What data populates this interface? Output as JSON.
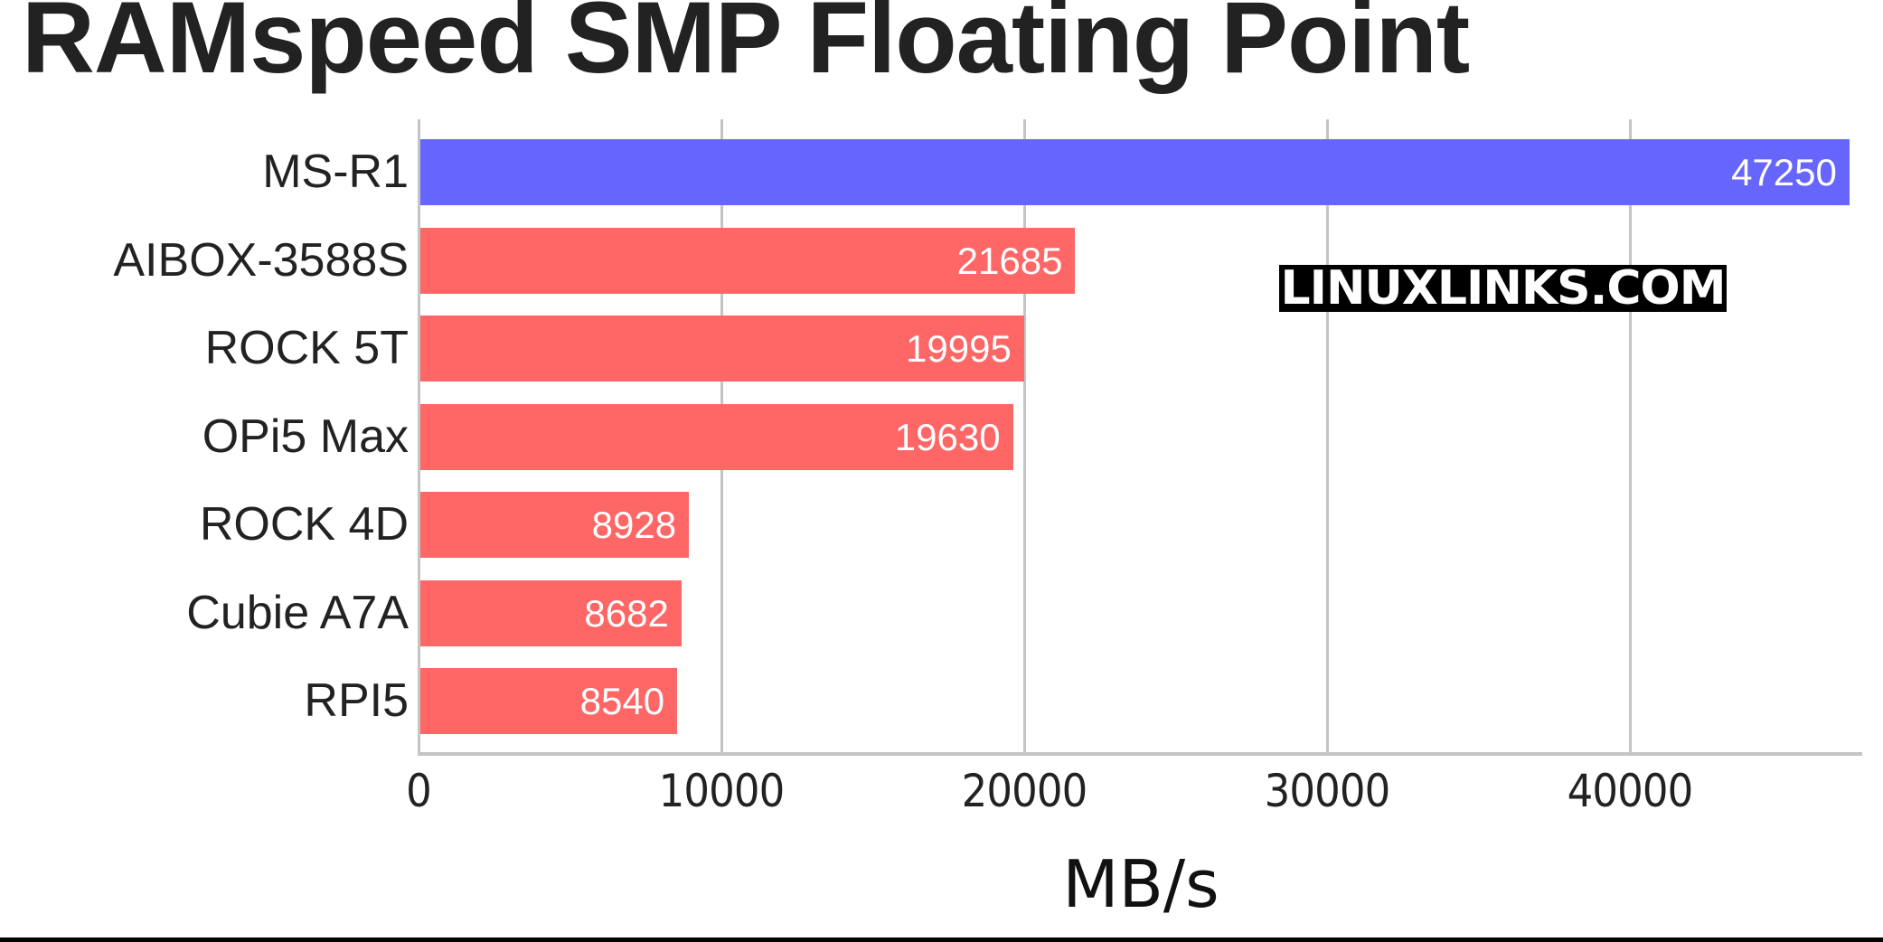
{
  "chart_data": {
    "type": "bar",
    "orientation": "horizontal",
    "title": "RAMspeed SMP Floating Point",
    "xlabel": "MB/s",
    "ylabel": "",
    "categories": [
      "MS-R1",
      "AIBOX-3588S",
      "ROCK 5T",
      "OPi5 Max",
      "ROCK 4D",
      "Cubie A7A",
      "RPI5"
    ],
    "values": [
      47250,
      21685,
      19995,
      19630,
      8928,
      8682,
      8540
    ],
    "bar_colors": [
      "#6666ff",
      "#ff6666",
      "#ff6666",
      "#ff6666",
      "#ff6666",
      "#ff6666",
      "#ff6666"
    ],
    "xticks": [
      "0",
      "10000",
      "20000",
      "30000",
      "40000"
    ],
    "xlim": [
      0,
      47800
    ],
    "grid": true,
    "legend": null,
    "data_labels": true,
    "annotations": [
      "LINUXLINKS.COM"
    ]
  },
  "header": {
    "title": "RAMspeed SMP Floating Point"
  },
  "axis": {
    "x_label": "MB/s",
    "ticks": [
      {
        "label": "0",
        "value": 0
      },
      {
        "label": "10000",
        "value": 10000
      },
      {
        "label": "20000",
        "value": 20000
      },
      {
        "label": "30000",
        "value": 30000
      },
      {
        "label": "40000",
        "value": 40000
      }
    ]
  },
  "bars": [
    {
      "label": "MS-R1",
      "value": 47250,
      "value_text": "47250",
      "color": "#6666ff"
    },
    {
      "label": "AIBOX-3588S",
      "value": 21685,
      "value_text": "21685",
      "color": "#ff6666"
    },
    {
      "label": "ROCK 5T",
      "value": 19995,
      "value_text": "19995",
      "color": "#ff6666"
    },
    {
      "label": "OPi5 Max",
      "value": 19630,
      "value_text": "19630",
      "color": "#ff6666"
    },
    {
      "label": "ROCK 4D",
      "value": 8928,
      "value_text": "8928",
      "color": "#ff6666"
    },
    {
      "label": "Cubie A7A",
      "value": 8682,
      "value_text": "8682",
      "color": "#ff6666"
    },
    {
      "label": "RPI5",
      "value": 8540,
      "value_text": "8540",
      "color": "#ff6666"
    }
  ],
  "watermark": {
    "text": "LINUXLINKS.COM"
  },
  "colors": {
    "highlight": "#6666ff",
    "default": "#ff6666",
    "grid": "#c4c4c4",
    "text": "#222222"
  }
}
